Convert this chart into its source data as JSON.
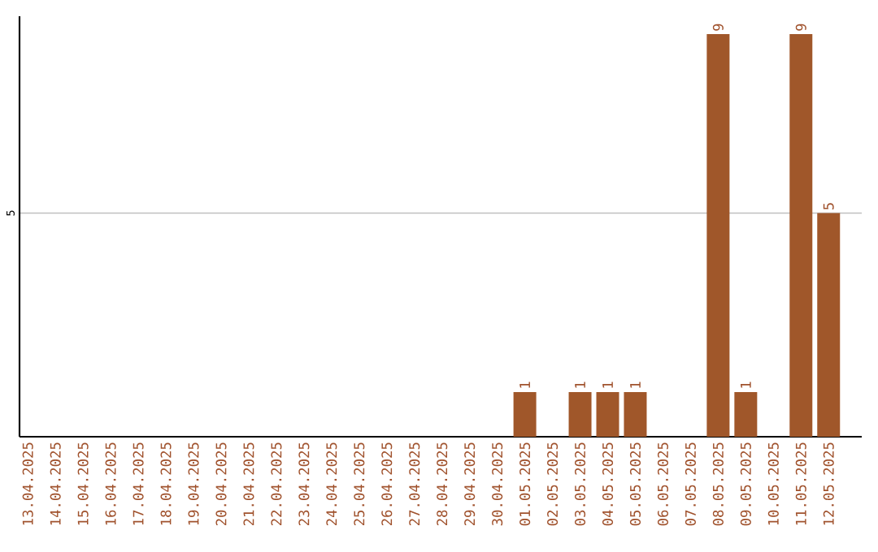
{
  "chart_data": {
    "type": "bar",
    "categories": [
      "13.04.2025",
      "14.04.2025",
      "15.04.2025",
      "16.04.2025",
      "17.04.2025",
      "18.04.2025",
      "19.04.2025",
      "20.04.2025",
      "21.04.2025",
      "22.04.2025",
      "23.04.2025",
      "24.04.2025",
      "25.04.2025",
      "26.04.2025",
      "27.04.2025",
      "28.04.2025",
      "29.04.2025",
      "30.04.2025",
      "01.05.2025",
      "02.05.2025",
      "03.05.2025",
      "04.05.2025",
      "05.05.2025",
      "06.05.2025",
      "07.05.2025",
      "08.05.2025",
      "09.05.2025",
      "10.05.2025",
      "11.05.2025",
      "12.05.2025"
    ],
    "values": [
      null,
      null,
      null,
      null,
      null,
      null,
      null,
      null,
      null,
      null,
      null,
      null,
      null,
      null,
      null,
      null,
      null,
      null,
      1,
      null,
      1,
      1,
      1,
      null,
      null,
      9,
      1,
      null,
      9,
      5
    ],
    "value_labels": [
      null,
      null,
      null,
      null,
      null,
      null,
      null,
      null,
      null,
      null,
      null,
      null,
      null,
      null,
      null,
      null,
      null,
      null,
      "1",
      null,
      "1",
      "1",
      "1",
      null,
      null,
      "9",
      "1",
      null,
      "9",
      "5"
    ],
    "color": "#a0572a",
    "ylim": [
      0,
      9.4
    ],
    "yticks": [
      5
    ],
    "grid": "y"
  }
}
